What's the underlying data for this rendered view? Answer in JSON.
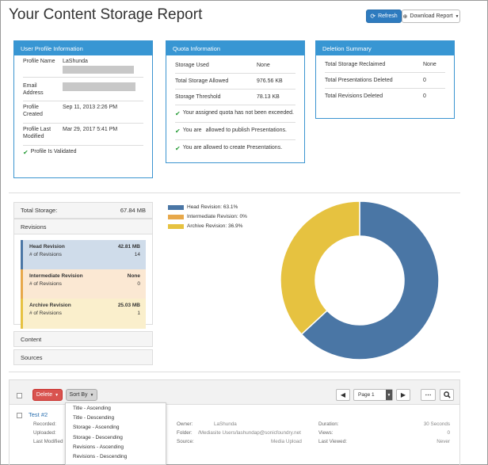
{
  "header": {
    "title": "Your Content Storage Report",
    "refresh_label": "Refresh",
    "download_label": "Download Report"
  },
  "profile": {
    "heading": "User Profile Information",
    "name_label": "Profile Name",
    "name_value": "LaShunda",
    "email_label_1": "Email",
    "email_label_2": "Address",
    "created_label_1": "Profile",
    "created_label_2": "Created",
    "created_value": "Sep 11, 2013 2:26 PM",
    "modified_label_1": "Profile Last",
    "modified_label_2": "Modified",
    "modified_value": "Mar 29, 2017 5:41 PM",
    "validated": "Profile Is Validated"
  },
  "quota": {
    "heading": "Quota Information",
    "used_label": "Storage Used",
    "used_value": "None",
    "allowed_label": "Total Storage Allowed",
    "allowed_value": "976.56 KB",
    "threshold_label": "Storage Threshold",
    "threshold_value": "78.13 KB",
    "msg1": "Your assigned quota has not been exceeded.",
    "msg2_a": "You are",
    "msg2_b": "allowed to publish Presentations.",
    "msg3": "You are allowed to create Presentations."
  },
  "deletion": {
    "heading": "Deletion Summary",
    "reclaimed_label": "Total Storage Reclaimed",
    "reclaimed_value": "None",
    "pres_label": "Total Presentations Deleted",
    "pres_value": "0",
    "rev_label": "Total Revisions Deleted",
    "rev_value": "0"
  },
  "storage": {
    "total_label": "Total Storage:",
    "total_value": "67.84 MB",
    "revisions_label": "Revisions",
    "count_label": "# of Revisions",
    "head": {
      "label": "Head Revision",
      "size": "42.81 MB",
      "count": "14"
    },
    "intermediate": {
      "label": "Intermediate Revision",
      "size": "None",
      "count": "0"
    },
    "archive": {
      "label": "Archive Revision",
      "size": "25.03 MB",
      "count": "1"
    },
    "content_label": "Content",
    "sources_label": "Sources"
  },
  "chart_data": {
    "type": "pie",
    "donut": true,
    "legend_position": "top-left",
    "series": [
      {
        "name": "Head Revision: 63.1%",
        "value": 63.1,
        "color": "#4a76a5"
      },
      {
        "name": "Intermediate Revision: 0%",
        "value": 0,
        "color": "#e7a84a"
      },
      {
        "name": "Archive Revision: 36.9%",
        "value": 36.9,
        "color": "#e6c240"
      }
    ]
  },
  "list": {
    "delete_label": "Delete",
    "sortby_label": "Sort By",
    "page_label": "Page 1",
    "sort_options": [
      "Title - Ascending",
      "Title - Descending",
      "Storage - Ascending",
      "Storage - Descending",
      "Revisions - Ascending",
      "Revisions - Descending"
    ],
    "item": {
      "title": "Test #2",
      "recorded_label": "Recorded:",
      "uploaded_label": "Uploaded:",
      "last_modified_label": "Last Modified",
      "owner_label": "Owner:",
      "owner_value": "LaShunda",
      "folder_label": "Folder:",
      "folder_value": "/Mediasite Users/lashundap@sonicfoundry.net",
      "source_label": "Source:",
      "source_value": "Media Upload",
      "duration_label": "Duration:",
      "duration_value": "30 Seconds",
      "views_label": "Views:",
      "views_value": "0",
      "last_viewed_label": "Last Viewed:",
      "last_viewed_value": "Never"
    }
  }
}
